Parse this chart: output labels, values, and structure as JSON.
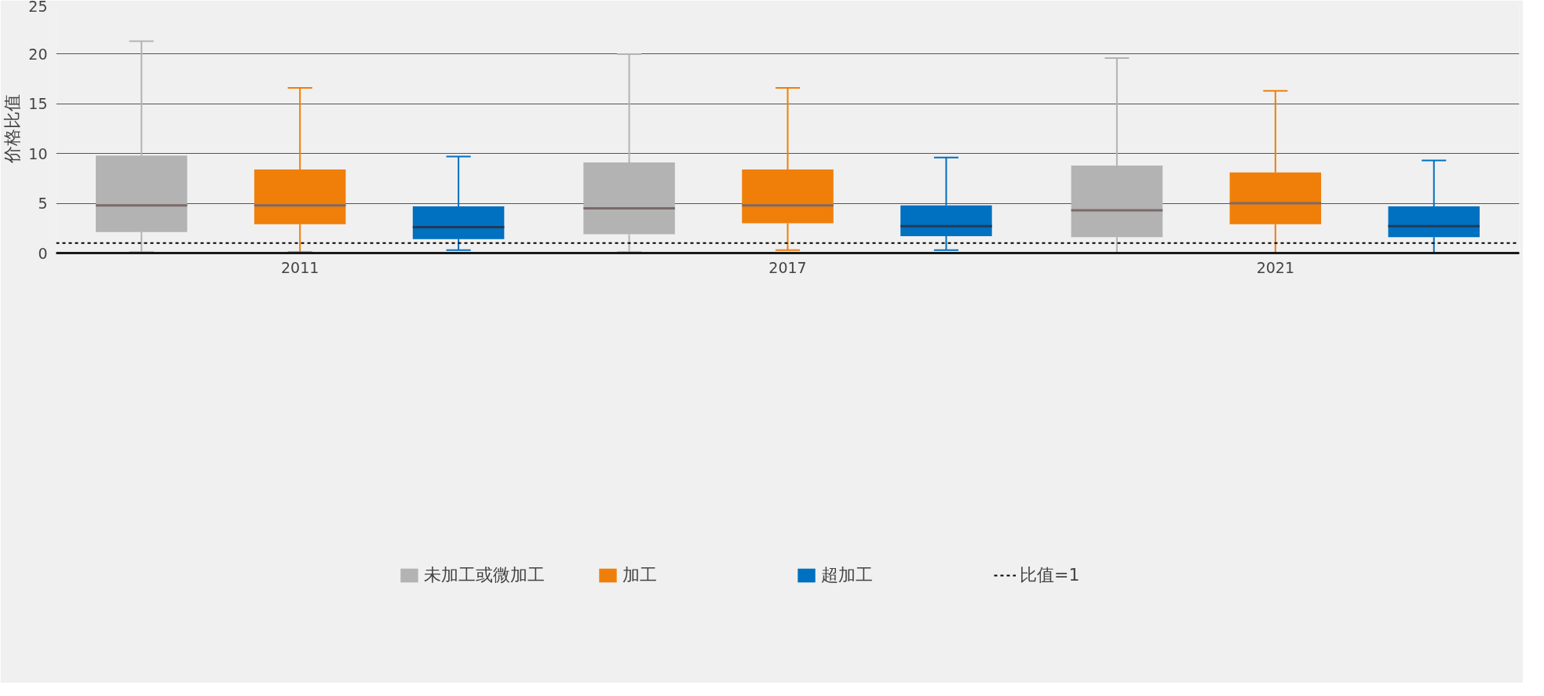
{
  "chart_data": {
    "type": "box",
    "ylabel": "价格比值",
    "categories": [
      "2011",
      "2017",
      "2021"
    ],
    "ylim": [
      0,
      25
    ],
    "yticks": [
      0,
      5,
      10,
      15,
      20,
      25
    ],
    "grid": "y",
    "legend": "bottom",
    "series": [
      {
        "name": "未加工或微加工",
        "color": "#b3b3b3",
        "boxes": [
          {
            "low": 0.1,
            "q1": 2.1,
            "median": 4.8,
            "q3": 9.8,
            "high": 21.3
          },
          {
            "low": 0.1,
            "q1": 1.9,
            "median": 4.5,
            "q3": 9.1,
            "high": 20.0
          },
          {
            "low": 0,
            "q1": 1.6,
            "median": 4.3,
            "q3": 8.8,
            "high": 19.6
          }
        ]
      },
      {
        "name": "加工",
        "color": "#f07f09",
        "boxes": [
          {
            "low": 0.1,
            "q1": 2.9,
            "median": 4.8,
            "q3": 8.4,
            "high": 16.6
          },
          {
            "low": 0.3,
            "q1": 3.0,
            "median": 4.8,
            "q3": 8.4,
            "high": 16.6
          },
          {
            "low": 0,
            "q1": 2.9,
            "median": 5.0,
            "q3": 8.1,
            "high": 16.3
          }
        ]
      },
      {
        "name": "超加工",
        "color": "#0070c0",
        "boxes": [
          {
            "low": 0.3,
            "q1": 1.4,
            "median": 2.6,
            "q3": 4.7,
            "high": 9.7
          },
          {
            "low": 0.3,
            "q1": 1.7,
            "median": 2.7,
            "q3": 4.8,
            "high": 9.6
          },
          {
            "low": 0,
            "q1": 1.6,
            "median": 2.7,
            "q3": 4.7,
            "high": 9.3
          }
        ]
      }
    ],
    "ref_lines": [
      {
        "axis": "y",
        "value": 1,
        "label": "比值=1",
        "color": "#000000",
        "line_style": "dotted"
      }
    ]
  }
}
